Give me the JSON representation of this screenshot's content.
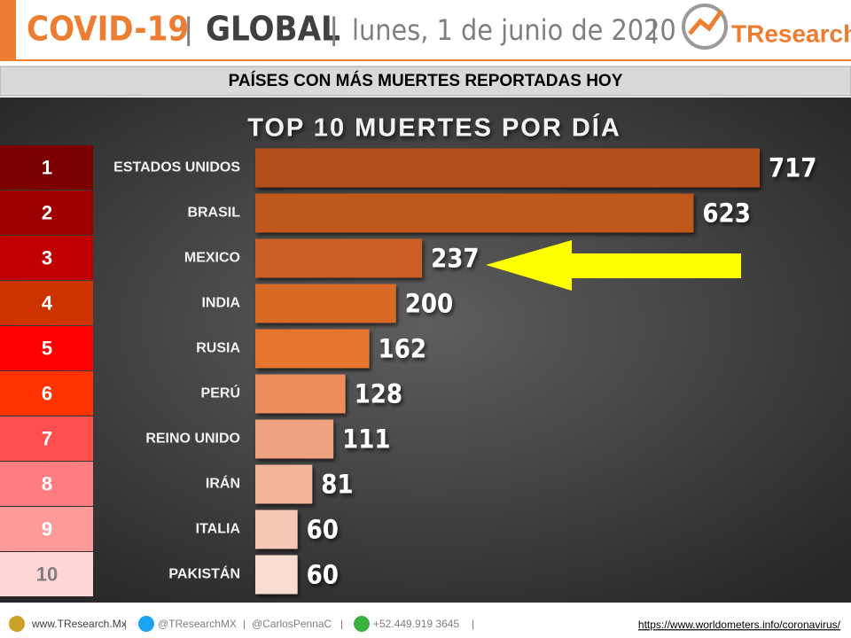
{
  "header": {
    "title1": "COVID-19",
    "separator": "|",
    "title2": "GLOBAL",
    "date": "lunes, 1 de junio de 2020",
    "logo": "TResearch"
  },
  "subtitle": "PAÍSES CON MÁS MUERTES REPORTADAS HOY",
  "chart_data": {
    "type": "bar",
    "orientation": "horizontal",
    "title": "TOP 10 MUERTES POR DÍA",
    "categories": [
      "ESTADOS UNIDOS",
      "BRASIL",
      "MEXICO",
      "INDIA",
      "RUSIA",
      "PERÚ",
      "REINO UNIDO",
      "IRÁN",
      "ITALIA",
      "PAKISTÁN"
    ],
    "ranks": [
      1,
      2,
      3,
      4,
      5,
      6,
      7,
      8,
      9,
      10
    ],
    "rank_colors": [
      "#7b0000",
      "#9c0000",
      "#c00000",
      "#cc3300",
      "#ff0000",
      "#ff3300",
      "#ff5050",
      "#ff7c80",
      "#ff9a9a",
      "#ffd6d6"
    ],
    "values": [
      717,
      623,
      237,
      200,
      162,
      128,
      111,
      81,
      60,
      60
    ],
    "colors": [
      "#b4501c",
      "#c0591f",
      "#c95f22",
      "#d86a26",
      "#e6762e",
      "#ec8d5c",
      "#efa27f",
      "#f2b59a",
      "#f5c8b6",
      "#f8dcd0"
    ]
  },
  "footer": {
    "website": "www.TResearch.Mx",
    "separator": "|",
    "twitter1": "@TResearchMX",
    "twitter2": "@CarlosPennaC",
    "phone": "+52.449.919 3645",
    "source": "https://www.worldometers.info/coronavirus/"
  }
}
